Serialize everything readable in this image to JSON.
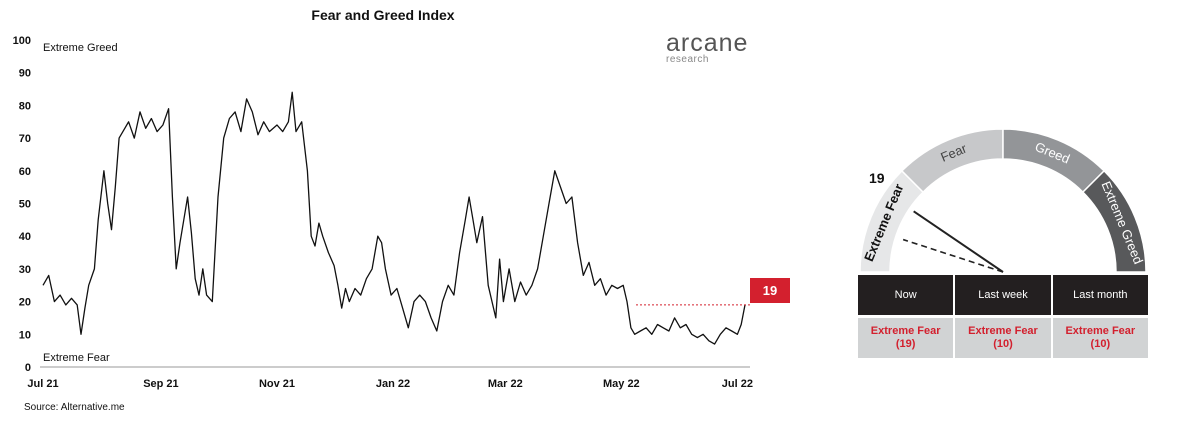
{
  "chart_data": {
    "type": "line",
    "title": "Fear and Greed Index",
    "ylim": [
      0,
      100
    ],
    "y_ticks": [
      "0",
      "10",
      "20",
      "30",
      "40",
      "50",
      "60",
      "70",
      "80",
      "90",
      "100"
    ],
    "x_ticks": [
      "Jul 21",
      "Sep 21",
      "Nov 21",
      "Jan 22",
      "Mar 22",
      "May 22",
      "Jul 22"
    ],
    "x_tick_dates": [
      "2021-07-01",
      "2021-09-01",
      "2021-11-01",
      "2022-01-01",
      "2022-03-01",
      "2022-05-01",
      "2022-07-01"
    ],
    "x_range": [
      "2021-07-01",
      "2022-07-05"
    ],
    "top_annotation": "Extreme Greed",
    "bottom_annotation": "Extreme Fear",
    "current_value": 19,
    "current_label": "19",
    "grid": false,
    "series": [
      {
        "name": "",
        "color": "#111111",
        "points": [
          [
            "2021-07-01",
            25
          ],
          [
            "2021-07-04",
            28
          ],
          [
            "2021-07-07",
            20
          ],
          [
            "2021-07-10",
            22
          ],
          [
            "2021-07-13",
            19
          ],
          [
            "2021-07-16",
            21
          ],
          [
            "2021-07-19",
            19
          ],
          [
            "2021-07-21",
            10
          ],
          [
            "2021-07-23",
            18
          ],
          [
            "2021-07-25",
            25
          ],
          [
            "2021-07-28",
            30
          ],
          [
            "2021-07-30",
            45
          ],
          [
            "2021-08-02",
            60
          ],
          [
            "2021-08-04",
            50
          ],
          [
            "2021-08-06",
            42
          ],
          [
            "2021-08-08",
            55
          ],
          [
            "2021-08-10",
            70
          ],
          [
            "2021-08-12",
            72
          ],
          [
            "2021-08-15",
            75
          ],
          [
            "2021-08-18",
            70
          ],
          [
            "2021-08-21",
            78
          ],
          [
            "2021-08-24",
            73
          ],
          [
            "2021-08-27",
            76
          ],
          [
            "2021-08-30",
            72
          ],
          [
            "2021-09-02",
            74
          ],
          [
            "2021-09-05",
            79
          ],
          [
            "2021-09-07",
            52
          ],
          [
            "2021-09-09",
            30
          ],
          [
            "2021-09-11",
            38
          ],
          [
            "2021-09-13",
            45
          ],
          [
            "2021-09-15",
            52
          ],
          [
            "2021-09-17",
            41
          ],
          [
            "2021-09-19",
            27
          ],
          [
            "2021-09-21",
            22
          ],
          [
            "2021-09-23",
            30
          ],
          [
            "2021-09-25",
            22
          ],
          [
            "2021-09-28",
            20
          ],
          [
            "2021-10-01",
            52
          ],
          [
            "2021-10-04",
            70
          ],
          [
            "2021-10-07",
            76
          ],
          [
            "2021-10-10",
            78
          ],
          [
            "2021-10-13",
            72
          ],
          [
            "2021-10-16",
            82
          ],
          [
            "2021-10-19",
            78
          ],
          [
            "2021-10-22",
            71
          ],
          [
            "2021-10-25",
            75
          ],
          [
            "2021-10-28",
            72
          ],
          [
            "2021-11-01",
            74
          ],
          [
            "2021-11-04",
            72
          ],
          [
            "2021-11-07",
            75
          ],
          [
            "2021-11-09",
            84
          ],
          [
            "2021-11-11",
            72
          ],
          [
            "2021-11-14",
            75
          ],
          [
            "2021-11-17",
            60
          ],
          [
            "2021-11-19",
            40
          ],
          [
            "2021-11-21",
            37
          ],
          [
            "2021-11-23",
            44
          ],
          [
            "2021-11-25",
            40
          ],
          [
            "2021-11-28",
            35
          ],
          [
            "2021-12-01",
            31
          ],
          [
            "2021-12-03",
            25
          ],
          [
            "2021-12-05",
            18
          ],
          [
            "2021-12-07",
            24
          ],
          [
            "2021-12-09",
            20
          ],
          [
            "2021-12-12",
            24
          ],
          [
            "2021-12-15",
            22
          ],
          [
            "2021-12-18",
            27
          ],
          [
            "2021-12-21",
            30
          ],
          [
            "2021-12-24",
            40
          ],
          [
            "2021-12-26",
            38
          ],
          [
            "2021-12-28",
            30
          ],
          [
            "2021-12-31",
            22
          ],
          [
            "2022-01-03",
            24
          ],
          [
            "2022-01-06",
            18
          ],
          [
            "2022-01-09",
            12
          ],
          [
            "2022-01-12",
            20
          ],
          [
            "2022-01-15",
            22
          ],
          [
            "2022-01-18",
            20
          ],
          [
            "2022-01-21",
            15
          ],
          [
            "2022-01-24",
            11
          ],
          [
            "2022-01-27",
            20
          ],
          [
            "2022-01-30",
            25
          ],
          [
            "2022-02-02",
            22
          ],
          [
            "2022-02-05",
            35
          ],
          [
            "2022-02-08",
            45
          ],
          [
            "2022-02-10",
            52
          ],
          [
            "2022-02-12",
            45
          ],
          [
            "2022-02-14",
            38
          ],
          [
            "2022-02-17",
            46
          ],
          [
            "2022-02-20",
            25
          ],
          [
            "2022-02-22",
            20
          ],
          [
            "2022-02-24",
            15
          ],
          [
            "2022-02-26",
            33
          ],
          [
            "2022-02-28",
            20
          ],
          [
            "2022-03-03",
            30
          ],
          [
            "2022-03-06",
            20
          ],
          [
            "2022-03-09",
            26
          ],
          [
            "2022-03-12",
            22
          ],
          [
            "2022-03-15",
            25
          ],
          [
            "2022-03-18",
            30
          ],
          [
            "2022-03-21",
            40
          ],
          [
            "2022-03-24",
            50
          ],
          [
            "2022-03-27",
            60
          ],
          [
            "2022-03-30",
            55
          ],
          [
            "2022-04-02",
            50
          ],
          [
            "2022-04-05",
            52
          ],
          [
            "2022-04-08",
            38
          ],
          [
            "2022-04-11",
            28
          ],
          [
            "2022-04-14",
            32
          ],
          [
            "2022-04-17",
            25
          ],
          [
            "2022-04-20",
            27
          ],
          [
            "2022-04-23",
            22
          ],
          [
            "2022-04-26",
            25
          ],
          [
            "2022-04-29",
            24
          ],
          [
            "2022-05-02",
            25
          ],
          [
            "2022-05-04",
            20
          ],
          [
            "2022-05-06",
            12
          ],
          [
            "2022-05-08",
            10
          ],
          [
            "2022-05-11",
            11
          ],
          [
            "2022-05-14",
            12
          ],
          [
            "2022-05-17",
            10
          ],
          [
            "2022-05-20",
            13
          ],
          [
            "2022-05-23",
            12
          ],
          [
            "2022-05-26",
            11
          ],
          [
            "2022-05-29",
            15
          ],
          [
            "2022-06-01",
            12
          ],
          [
            "2022-06-04",
            13
          ],
          [
            "2022-06-07",
            10
          ],
          [
            "2022-06-10",
            9
          ],
          [
            "2022-06-13",
            10
          ],
          [
            "2022-06-16",
            8
          ],
          [
            "2022-06-19",
            7
          ],
          [
            "2022-06-22",
            10
          ],
          [
            "2022-06-25",
            12
          ],
          [
            "2022-06-28",
            11
          ],
          [
            "2022-07-01",
            10
          ],
          [
            "2022-07-03",
            13
          ],
          [
            "2022-07-05",
            19
          ]
        ]
      }
    ]
  },
  "logo": {
    "word": "arcane",
    "sub": "research"
  },
  "source": "Source: Alternative.me",
  "gauge": {
    "value_label": "19",
    "segments": [
      {
        "label": "Extreme Fear",
        "color": "#e6e7e8"
      },
      {
        "label": "Fear",
        "color": "#c7c8ca"
      },
      {
        "label": "Greed",
        "color": "#939598"
      },
      {
        "label": "Extreme Greed",
        "color": "#58595b"
      }
    ],
    "needle_value": 19,
    "needle_prev_value": 10
  },
  "status_table": {
    "headers": [
      "Now",
      "Last week",
      "Last month"
    ],
    "values": [
      {
        "label": "Extreme Fear",
        "value": "(19)"
      },
      {
        "label": "Extreme Fear",
        "value": "(10)"
      },
      {
        "label": "Extreme Fear",
        "value": "(10)"
      }
    ]
  },
  "colors": {
    "accent_red": "#d3202e",
    "table_header": "#231f20",
    "table_cell": "#d1d3d4"
  }
}
